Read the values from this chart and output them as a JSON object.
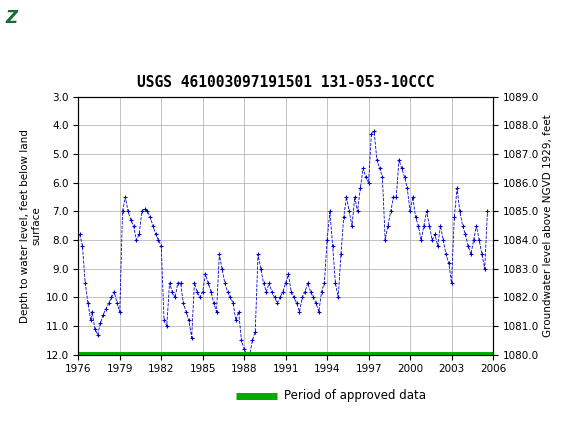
{
  "title": "USGS 461003097191501 131-053-10CCC",
  "ylabel_left": "Depth to water level, feet below land\nsurface",
  "ylabel_right": "Groundwater level above NGVD 1929, feet",
  "ylim_left": [
    12.0,
    3.0
  ],
  "ylim_right": [
    1080.0,
    1089.0
  ],
  "xlim": [
    1976,
    2006
  ],
  "yticks_left": [
    3.0,
    4.0,
    5.0,
    6.0,
    7.0,
    8.0,
    9.0,
    10.0,
    11.0,
    12.0
  ],
  "yticks_right": [
    1080.0,
    1081.0,
    1082.0,
    1083.0,
    1084.0,
    1085.0,
    1086.0,
    1087.0,
    1088.0,
    1089.0
  ],
  "xticks": [
    1976,
    1979,
    1982,
    1985,
    1988,
    1991,
    1994,
    1997,
    2000,
    2003,
    2006
  ],
  "header_color": "#1A6B3C",
  "line_color": "#0000CC",
  "approved_color": "#00AA00",
  "background_color": "#FFFFFF",
  "grid_color": "#AAAAAA",
  "legend_label": "Period of approved data",
  "data_years": [
    1976.1,
    1976.3,
    1976.5,
    1976.7,
    1976.9,
    1977.0,
    1977.2,
    1977.4,
    1977.6,
    1977.8,
    1978.0,
    1978.2,
    1978.4,
    1978.6,
    1978.8,
    1979.0,
    1979.2,
    1979.4,
    1979.6,
    1979.8,
    1980.0,
    1980.2,
    1980.4,
    1980.6,
    1980.8,
    1981.0,
    1981.2,
    1981.4,
    1981.6,
    1981.8,
    1982.0,
    1982.2,
    1982.4,
    1982.6,
    1982.8,
    1983.0,
    1983.2,
    1983.4,
    1983.6,
    1983.8,
    1984.0,
    1984.2,
    1984.4,
    1984.6,
    1984.8,
    1985.0,
    1985.2,
    1985.4,
    1985.6,
    1985.8,
    1986.0,
    1986.2,
    1986.4,
    1986.6,
    1986.8,
    1987.0,
    1987.2,
    1987.4,
    1987.6,
    1987.8,
    1988.0,
    1988.2,
    1988.4,
    1988.6,
    1988.8,
    1989.0,
    1989.2,
    1989.4,
    1989.6,
    1989.8,
    1990.0,
    1990.2,
    1990.4,
    1990.6,
    1990.8,
    1991.0,
    1991.2,
    1991.4,
    1991.6,
    1991.8,
    1992.0,
    1992.2,
    1992.4,
    1992.6,
    1992.8,
    1993.0,
    1993.2,
    1993.4,
    1993.6,
    1993.8,
    1994.0,
    1994.2,
    1994.4,
    1994.6,
    1994.8,
    1995.0,
    1995.2,
    1995.4,
    1995.6,
    1995.8,
    1996.0,
    1996.2,
    1996.4,
    1996.6,
    1996.8,
    1997.0,
    1997.2,
    1997.4,
    1997.6,
    1997.8,
    1998.0,
    1998.2,
    1998.4,
    1998.6,
    1998.8,
    1999.0,
    1999.2,
    1999.4,
    1999.6,
    1999.8,
    2000.0,
    2000.2,
    2000.4,
    2000.6,
    2000.8,
    2001.0,
    2001.2,
    2001.4,
    2001.6,
    2001.8,
    2002.0,
    2002.2,
    2002.4,
    2002.6,
    2002.8,
    2003.0,
    2003.2,
    2003.4,
    2003.6,
    2003.8,
    2004.0,
    2004.2,
    2004.4,
    2004.6,
    2004.8,
    2005.0,
    2005.2,
    2005.4,
    2005.6
  ],
  "data_depths": [
    7.8,
    8.2,
    9.5,
    10.2,
    10.8,
    10.5,
    11.1,
    11.3,
    10.9,
    10.6,
    10.4,
    10.2,
    10.0,
    9.8,
    10.2,
    10.5,
    7.0,
    6.5,
    7.0,
    7.3,
    7.5,
    8.0,
    7.8,
    7.0,
    6.9,
    7.0,
    7.2,
    7.5,
    7.8,
    8.0,
    8.2,
    10.8,
    11.0,
    9.5,
    9.8,
    10.0,
    9.5,
    9.5,
    10.2,
    10.5,
    10.8,
    11.4,
    9.5,
    9.8,
    10.0,
    9.8,
    9.2,
    9.5,
    9.8,
    10.2,
    10.5,
    8.5,
    9.0,
    9.5,
    9.8,
    10.0,
    10.2,
    10.8,
    10.5,
    11.5,
    11.8,
    12.0,
    12.0,
    11.5,
    11.2,
    8.5,
    9.0,
    9.5,
    9.8,
    9.5,
    9.8,
    10.0,
    10.2,
    10.0,
    9.8,
    9.5,
    9.2,
    9.8,
    10.0,
    10.2,
    10.5,
    10.0,
    9.8,
    9.5,
    9.8,
    10.0,
    10.2,
    10.5,
    9.8,
    9.5,
    8.0,
    7.0,
    8.2,
    9.5,
    10.0,
    8.5,
    7.2,
    6.5,
    7.0,
    7.5,
    6.5,
    7.0,
    6.2,
    5.5,
    5.8,
    6.0,
    4.3,
    4.2,
    5.2,
    5.5,
    5.8,
    8.0,
    7.5,
    7.0,
    6.5,
    6.5,
    5.2,
    5.5,
    5.8,
    6.2,
    7.0,
    6.5,
    7.2,
    7.5,
    8.0,
    7.5,
    7.0,
    7.5,
    8.0,
    7.8,
    8.2,
    7.5,
    8.0,
    8.5,
    8.8,
    9.5,
    7.2,
    6.2,
    7.0,
    7.5,
    7.8,
    8.2,
    8.5,
    8.0,
    7.5,
    8.0,
    8.5,
    9.0,
    7.0
  ]
}
